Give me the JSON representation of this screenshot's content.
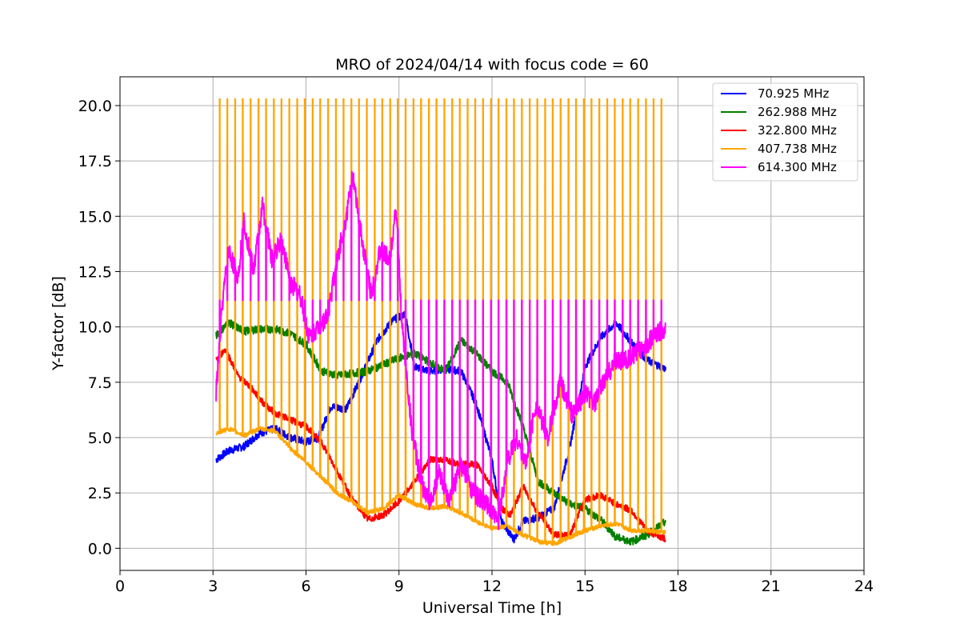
{
  "chart_data": {
    "type": "line",
    "title": "MRO of 2024/04/14 with focus code = 60",
    "xlabel": "Universal Time [h]",
    "ylabel": "Y-factor [dB]",
    "xlim": [
      0,
      24
    ],
    "ylim": [
      -1.0,
      21.3
    ],
    "xticks": [
      0,
      3,
      6,
      9,
      12,
      15,
      18,
      21,
      24
    ],
    "xtick_labels": [
      "0",
      "3",
      "6",
      "9",
      "12",
      "15",
      "18",
      "21",
      "24"
    ],
    "yticks": [
      0.0,
      2.5,
      5.0,
      7.5,
      10.0,
      12.5,
      15.0,
      17.5,
      20.0
    ],
    "ytick_labels": [
      "0.0",
      "2.5",
      "5.0",
      "7.5",
      "10.0",
      "12.5",
      "15.0",
      "17.5",
      "20.0"
    ],
    "grid": true,
    "legend_position": "top-right",
    "series": [
      {
        "name": "  70.925 MHz",
        "color": "#0000ff",
        "points": [
          [
            3.1,
            4.0
          ],
          [
            3.5,
            4.4
          ],
          [
            4.0,
            4.6
          ],
          [
            4.5,
            5.2
          ],
          [
            5.0,
            5.4
          ],
          [
            5.5,
            5.0
          ],
          [
            6.0,
            4.8
          ],
          [
            6.4,
            5.0
          ],
          [
            6.8,
            6.4
          ],
          [
            7.3,
            6.3
          ],
          [
            7.8,
            7.8
          ],
          [
            8.3,
            9.4
          ],
          [
            8.8,
            10.3
          ],
          [
            9.2,
            10.6
          ],
          [
            9.5,
            8.2
          ],
          [
            10.0,
            8.0
          ],
          [
            10.5,
            8.1
          ],
          [
            11.0,
            8.0
          ],
          [
            11.5,
            6.5
          ],
          [
            12.0,
            4.0
          ],
          [
            12.3,
            1.2
          ],
          [
            12.7,
            0.4
          ],
          [
            13.0,
            1.2
          ],
          [
            13.5,
            1.4
          ],
          [
            14.0,
            1.8
          ],
          [
            14.5,
            4.5
          ],
          [
            15.0,
            8.2
          ],
          [
            15.5,
            9.5
          ],
          [
            16.0,
            10.2
          ],
          [
            16.5,
            9.3
          ],
          [
            17.0,
            8.5
          ],
          [
            17.6,
            8.1
          ]
        ]
      },
      {
        "name": "262.988 MHz",
        "color": "#008000",
        "points": [
          [
            3.1,
            9.6
          ],
          [
            3.5,
            10.2
          ],
          [
            4.0,
            9.8
          ],
          [
            4.5,
            9.9
          ],
          [
            5.0,
            9.9
          ],
          [
            5.5,
            9.7
          ],
          [
            6.0,
            9.2
          ],
          [
            6.5,
            8.0
          ],
          [
            7.0,
            7.8
          ],
          [
            7.5,
            7.9
          ],
          [
            8.0,
            8.0
          ],
          [
            8.5,
            8.3
          ],
          [
            9.0,
            8.6
          ],
          [
            9.5,
            8.8
          ],
          [
            10.0,
            8.4
          ],
          [
            10.5,
            8.0
          ],
          [
            11.0,
            9.4
          ],
          [
            11.5,
            8.8
          ],
          [
            12.0,
            8.0
          ],
          [
            12.5,
            7.5
          ],
          [
            13.0,
            5.5
          ],
          [
            13.5,
            3.0
          ],
          [
            14.0,
            2.5
          ],
          [
            14.5,
            2.0
          ],
          [
            15.0,
            1.8
          ],
          [
            15.5,
            1.3
          ],
          [
            16.0,
            0.5
          ],
          [
            16.5,
            0.3
          ],
          [
            17.0,
            0.6
          ],
          [
            17.6,
            1.2
          ]
        ]
      },
      {
        "name": "322.800 MHz",
        "color": "#ff0000",
        "points": [
          [
            3.1,
            8.5
          ],
          [
            3.4,
            9.0
          ],
          [
            3.8,
            7.8
          ],
          [
            4.2,
            7.3
          ],
          [
            4.6,
            6.6
          ],
          [
            5.0,
            6.1
          ],
          [
            5.5,
            5.8
          ],
          [
            6.0,
            5.5
          ],
          [
            6.5,
            4.8
          ],
          [
            7.0,
            3.5
          ],
          [
            7.5,
            2.2
          ],
          [
            8.0,
            1.3
          ],
          [
            8.5,
            1.5
          ],
          [
            9.0,
            2.1
          ],
          [
            9.5,
            3.0
          ],
          [
            10.0,
            4.0
          ],
          [
            10.5,
            4.0
          ],
          [
            11.0,
            3.8
          ],
          [
            11.5,
            3.8
          ],
          [
            12.0,
            2.8
          ],
          [
            12.3,
            1.8
          ],
          [
            12.6,
            1.5
          ],
          [
            13.0,
            2.8
          ],
          [
            13.4,
            1.8
          ],
          [
            14.0,
            0.6
          ],
          [
            14.5,
            0.6
          ],
          [
            15.0,
            2.2
          ],
          [
            15.5,
            2.4
          ],
          [
            16.0,
            2.0
          ],
          [
            16.5,
            1.7
          ],
          [
            17.0,
            0.8
          ],
          [
            17.6,
            0.4
          ]
        ]
      },
      {
        "name": "407.738 MHz",
        "color": "#ffa500",
        "baseline": [
          [
            3.1,
            5.2
          ],
          [
            3.5,
            5.4
          ],
          [
            4.0,
            5.1
          ],
          [
            4.5,
            5.4
          ],
          [
            5.0,
            5.3
          ],
          [
            5.5,
            4.5
          ],
          [
            6.0,
            3.9
          ],
          [
            6.5,
            3.2
          ],
          [
            7.0,
            2.5
          ],
          [
            7.5,
            2.1
          ],
          [
            8.0,
            1.6
          ],
          [
            8.5,
            1.8
          ],
          [
            9.0,
            2.4
          ],
          [
            9.5,
            2.0
          ],
          [
            10.0,
            1.8
          ],
          [
            10.5,
            1.9
          ],
          [
            11.0,
            1.6
          ],
          [
            11.5,
            1.2
          ],
          [
            12.0,
            0.9
          ],
          [
            12.5,
            1.0
          ],
          [
            13.0,
            0.6
          ],
          [
            13.5,
            0.3
          ],
          [
            14.0,
            0.2
          ],
          [
            14.5,
            0.5
          ],
          [
            15.0,
            0.8
          ],
          [
            15.5,
            1.0
          ],
          [
            16.0,
            1.1
          ],
          [
            16.5,
            0.8
          ],
          [
            17.0,
            0.8
          ],
          [
            17.6,
            0.7
          ]
        ],
        "spike_period_h": 0.25,
        "spike_start_h": 3.2,
        "spike_end_h": 17.55,
        "spike_peak": 20.3
      },
      {
        "name": "614.300 MHz",
        "color": "#ff00ff",
        "baseline": [
          [
            3.1,
            7.0
          ],
          [
            3.3,
            11.0
          ],
          [
            3.5,
            13.5
          ],
          [
            3.8,
            12.2
          ],
          [
            4.0,
            14.8
          ],
          [
            4.3,
            12.5
          ],
          [
            4.6,
            15.5
          ],
          [
            4.9,
            13.0
          ],
          [
            5.2,
            14.0
          ],
          [
            5.5,
            12.0
          ],
          [
            5.8,
            11.5
          ],
          [
            6.1,
            9.5
          ],
          [
            6.4,
            10.0
          ],
          [
            6.7,
            10.5
          ],
          [
            7.0,
            13.0
          ],
          [
            7.3,
            15.0
          ],
          [
            7.5,
            16.8
          ],
          [
            7.8,
            14.0
          ],
          [
            8.1,
            11.5
          ],
          [
            8.4,
            13.5
          ],
          [
            8.7,
            13.0
          ],
          [
            8.9,
            15.5
          ],
          [
            9.1,
            10.0
          ],
          [
            9.4,
            5.5
          ],
          [
            9.7,
            3.0
          ],
          [
            10.0,
            2.0
          ],
          [
            10.3,
            3.5
          ],
          [
            10.6,
            2.0
          ],
          [
            11.0,
            3.8
          ],
          [
            11.4,
            2.5
          ],
          [
            11.8,
            2.0
          ],
          [
            12.2,
            1.2
          ],
          [
            12.5,
            4.0
          ],
          [
            12.8,
            5.0
          ],
          [
            13.1,
            3.8
          ],
          [
            13.4,
            6.5
          ],
          [
            13.8,
            5.0
          ],
          [
            14.2,
            7.5
          ],
          [
            14.6,
            6.0
          ],
          [
            15.0,
            7.0
          ],
          [
            15.3,
            6.5
          ],
          [
            15.6,
            7.5
          ],
          [
            16.0,
            8.5
          ],
          [
            16.4,
            8.5
          ],
          [
            16.8,
            9.0
          ],
          [
            17.2,
            9.5
          ],
          [
            17.6,
            10.0
          ]
        ],
        "spike_period_h": 0.25,
        "spike_start_h": 3.2,
        "spike_end_h": 17.55,
        "spike_peak": 11.2
      }
    ]
  }
}
